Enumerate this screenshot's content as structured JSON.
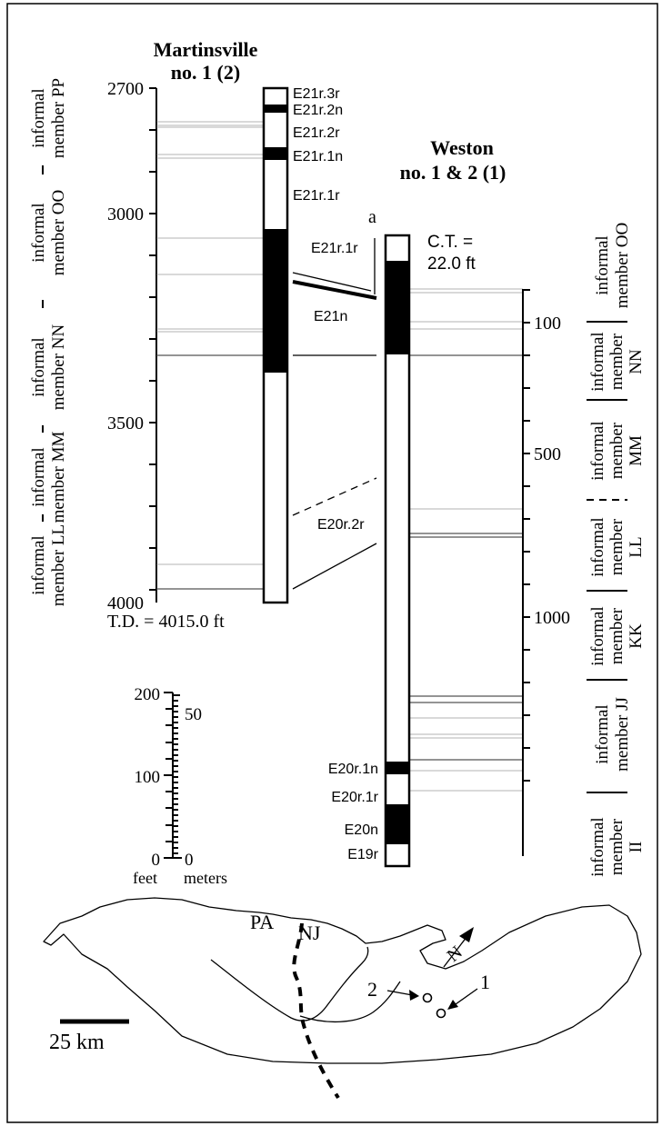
{
  "wells": {
    "martinsville": {
      "title_line1": "Martinsville",
      "title_line2": "no. 1 (2)",
      "axis_ticks": [
        "2700",
        "3000",
        "3500",
        "4000"
      ],
      "td_label": "T.D. = 4015.0 ft",
      "zones": [
        "E21r.3r",
        "E21r.2n",
        "E21r.2r",
        "E21r.1n",
        "E21r.1r"
      ],
      "members": [
        {
          "line1": "informal",
          "line2": "member PP"
        },
        {
          "line1": "informal",
          "line2": "member OO"
        },
        {
          "line1": "informal",
          "line2": "member NN"
        },
        {
          "line1": "informal",
          "line2": "member MM"
        },
        {
          "line1": "informal",
          "line2": "member LL"
        }
      ]
    },
    "weston": {
      "title_line1": "Weston",
      "title_line2": "no. 1 & 2 (1)",
      "marker": "a",
      "ct_line1": "C.T. =",
      "ct_line2": "22.0 ft",
      "axis_ticks": [
        "100",
        "500",
        "1000"
      ],
      "zones": [
        "E21r.1r",
        "E21n",
        "E20r.2r",
        "E20r.1n",
        "E20r.1r",
        "E20n",
        "E19r"
      ],
      "members": [
        {
          "line1": "informal",
          "line2": "member OO"
        },
        {
          "line1": "informal",
          "line2": "member",
          "line3": "NN"
        },
        {
          "line1": "informal",
          "line2": "member",
          "line3": "MM"
        },
        {
          "line1": "informal",
          "line2": "member",
          "line3": "LL"
        },
        {
          "line1": "informal",
          "line2": "member",
          "line3": "KK"
        },
        {
          "line1": "informal",
          "line2": "member JJ"
        },
        {
          "line1": "informal",
          "line2": "member",
          "line3": "II"
        }
      ]
    }
  },
  "scale_bar": {
    "feet_ticks": [
      "200",
      "100",
      "0"
    ],
    "meter_ticks": [
      "50",
      "0"
    ],
    "feet_label": "feet",
    "meters_label": "meters"
  },
  "map": {
    "state_pa": "PA",
    "state_nj": "NJ",
    "site_1": "1",
    "site_2": "2",
    "north": "N",
    "scale_label": "25 km"
  },
  "colors": {
    "ink": "#000000",
    "gridline": "#9a9a9a",
    "background": "#ffffff"
  }
}
